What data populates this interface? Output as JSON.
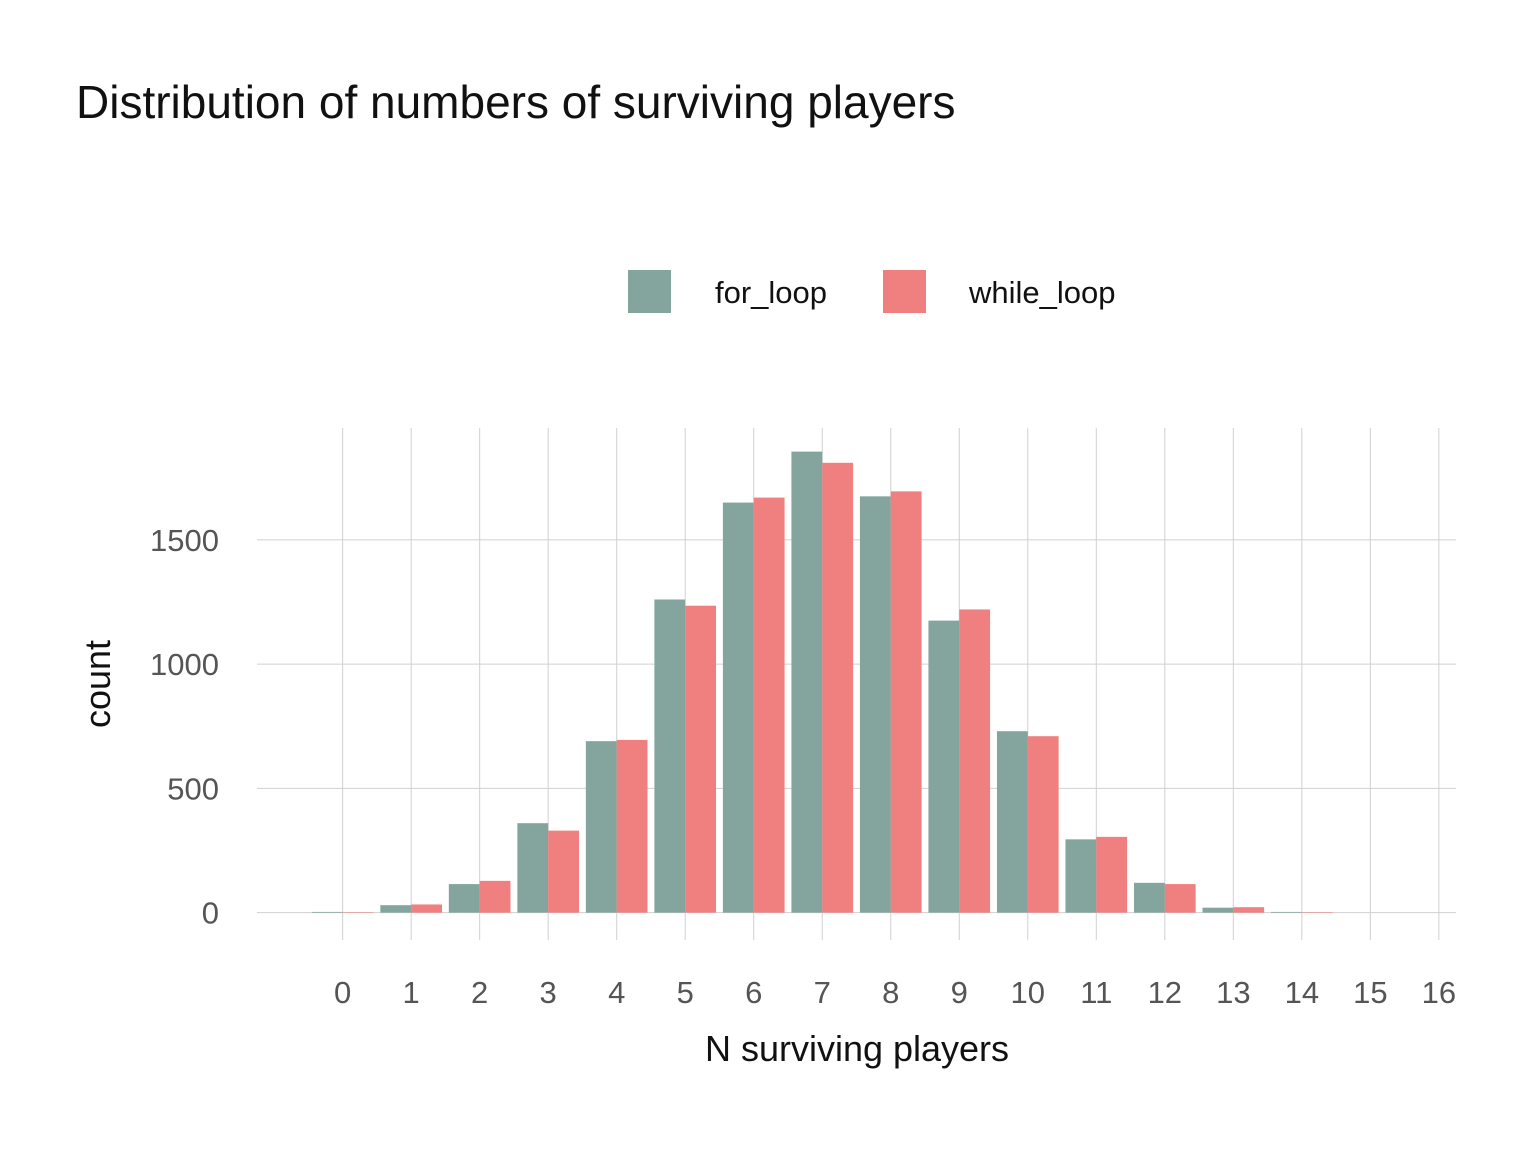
{
  "chart_data": {
    "type": "bar",
    "title": "Distribution of numbers of surviving players",
    "xlabel": "N surviving players",
    "ylabel": "count",
    "categories": [
      "0",
      "1",
      "2",
      "3",
      "4",
      "5",
      "6",
      "7",
      "8",
      "9",
      "10",
      "11",
      "12",
      "13",
      "14",
      "15",
      "16"
    ],
    "series": [
      {
        "name": "for_loop",
        "color": "#84a59d",
        "values": [
          3,
          30,
          115,
          360,
          690,
          1260,
          1650,
          1855,
          1675,
          1175,
          730,
          295,
          120,
          20,
          3,
          0,
          0
        ]
      },
      {
        "name": "while_loop",
        "color": "#f08080",
        "values": [
          2,
          33,
          128,
          330,
          695,
          1235,
          1670,
          1810,
          1695,
          1220,
          710,
          305,
          115,
          22,
          2,
          0,
          0
        ]
      }
    ],
    "yticks": [
      0,
      500,
      1000,
      1500
    ],
    "ylim": [
      -110,
      1950
    ],
    "xlim": [
      -1.25,
      16.25
    ],
    "grid": true,
    "legend_position": "top"
  }
}
